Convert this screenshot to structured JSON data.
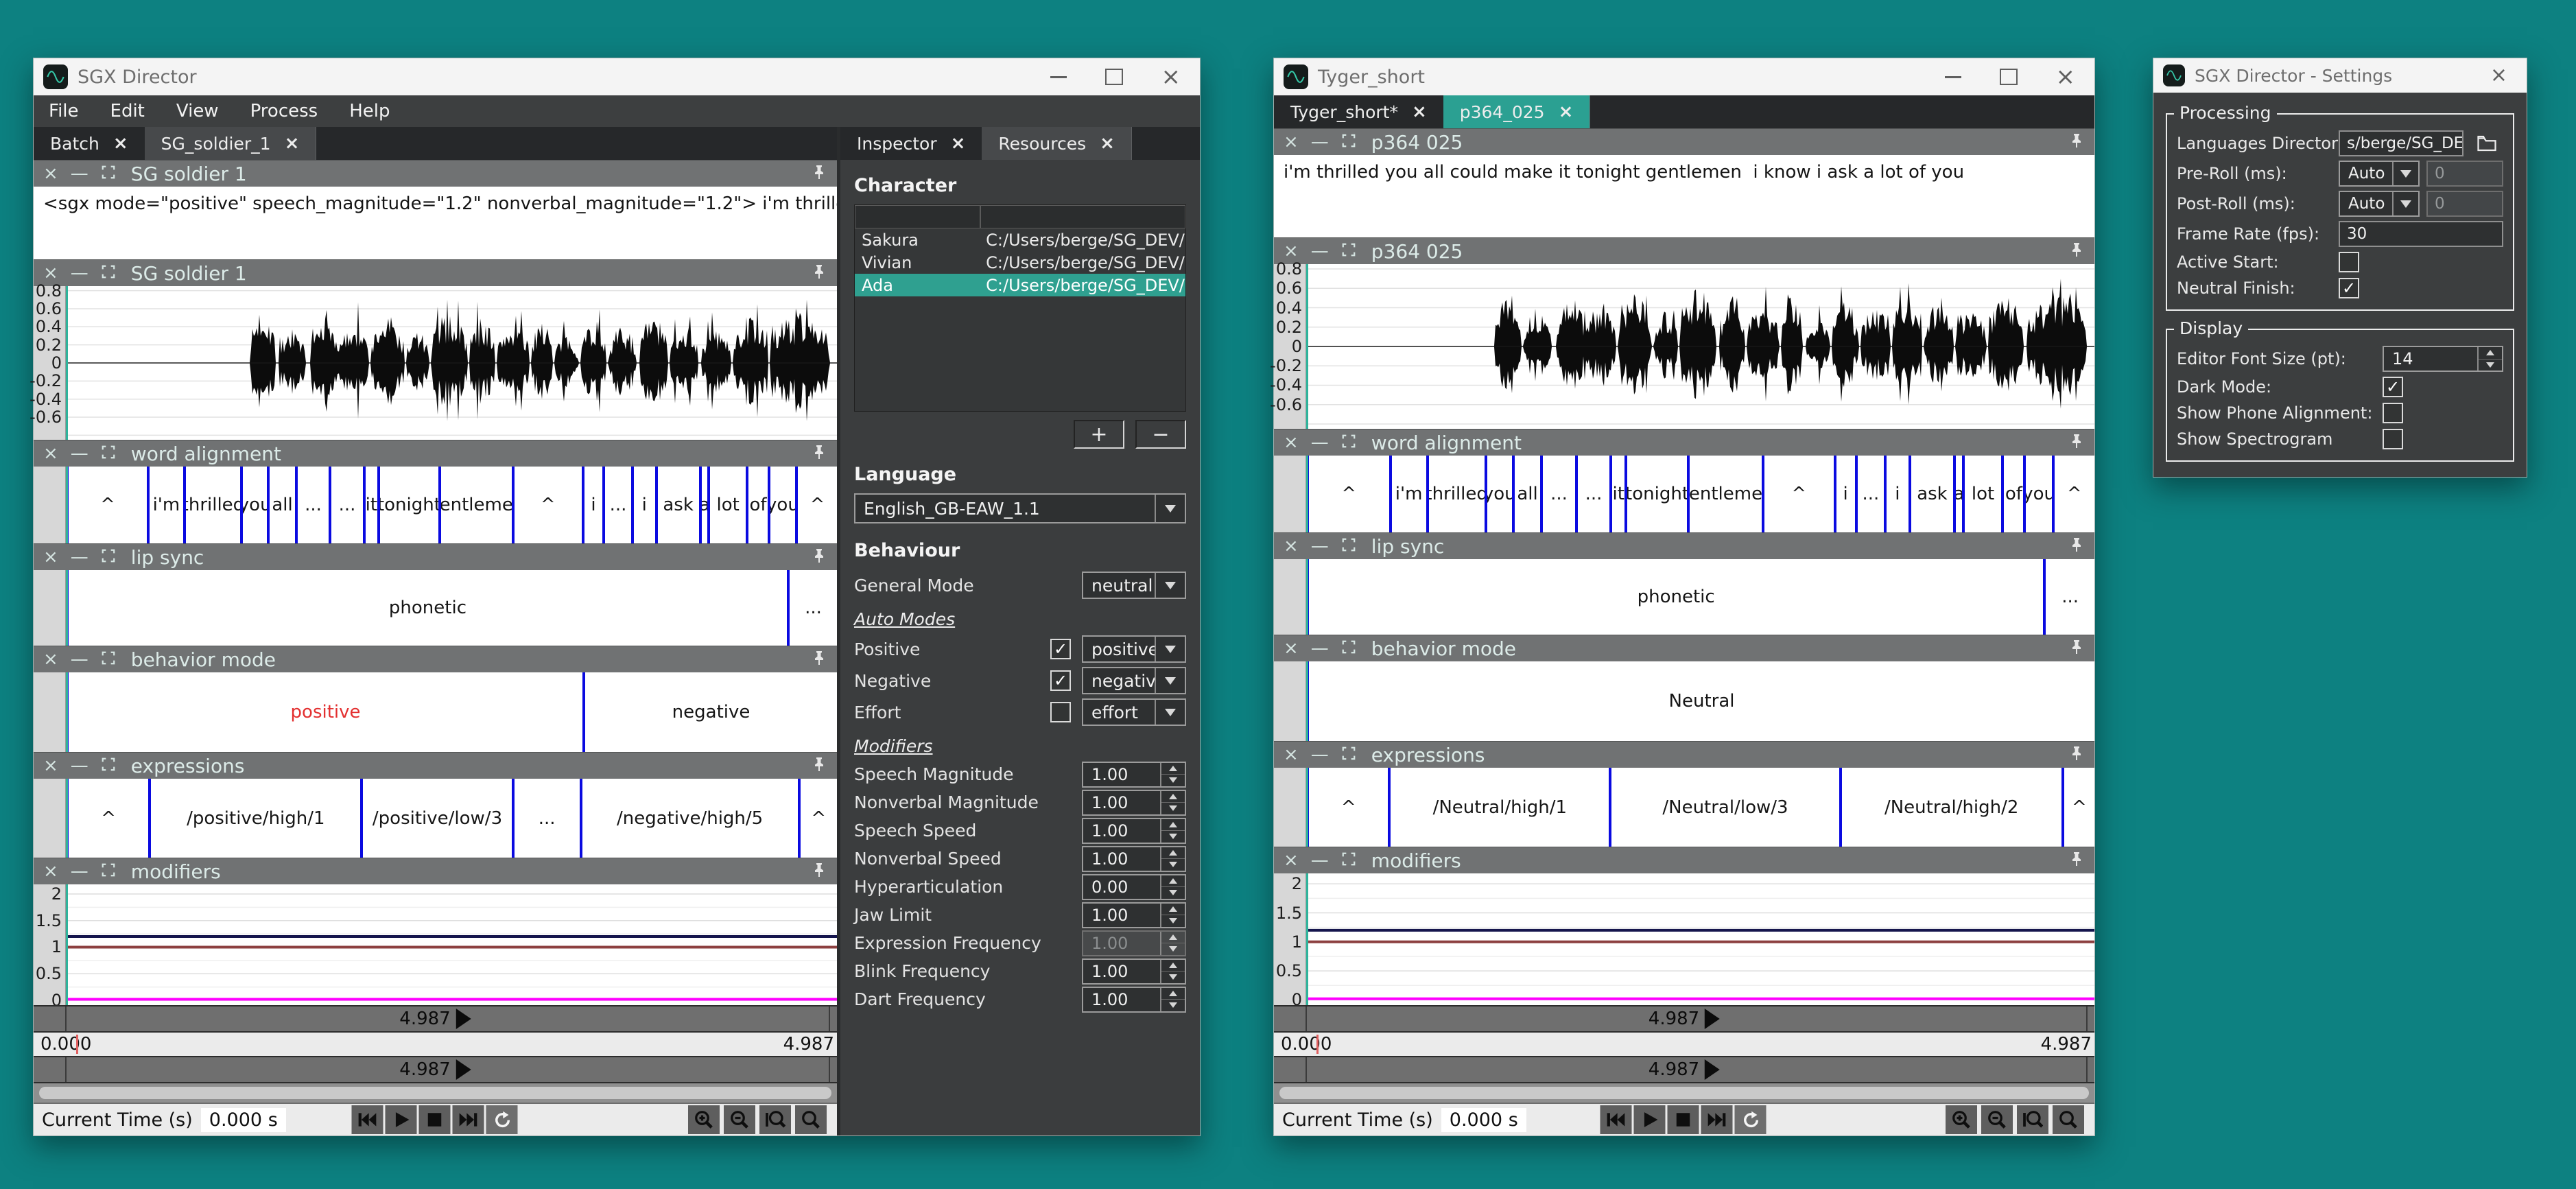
{
  "desktop": {
    "bg": "#0d8181",
    "accent_teal": "#2ba092",
    "boundary_blue": "#0a0ae0"
  },
  "wave": {
    "y_ticks": [
      {
        "label": "0.8",
        "v": 0.8
      },
      {
        "label": "0.6",
        "v": 0.6
      },
      {
        "label": "0.4",
        "v": 0.4
      },
      {
        "label": "0.2",
        "v": 0.2
      },
      {
        "label": "0",
        "v": 0.0
      },
      {
        "label": "-0.2",
        "v": -0.2
      },
      {
        "label": "-0.4",
        "v": -0.4
      },
      {
        "label": "-0.6",
        "v": -0.6
      }
    ],
    "bursts": [
      [
        0.24,
        0.272,
        0.62
      ],
      [
        0.276,
        0.31,
        0.36
      ],
      [
        0.318,
        0.356,
        0.46
      ],
      [
        0.356,
        0.392,
        0.42
      ],
      [
        0.396,
        0.438,
        0.5
      ],
      [
        0.442,
        0.47,
        0.34
      ],
      [
        0.474,
        0.52,
        0.55
      ],
      [
        0.524,
        0.556,
        0.48
      ],
      [
        0.56,
        0.6,
        0.42
      ],
      [
        0.604,
        0.63,
        0.5
      ],
      [
        0.634,
        0.664,
        0.3
      ],
      [
        0.668,
        0.7,
        0.46
      ],
      [
        0.704,
        0.74,
        0.38
      ],
      [
        0.744,
        0.78,
        0.5
      ],
      [
        0.784,
        0.82,
        0.44
      ],
      [
        0.824,
        0.862,
        0.36
      ],
      [
        0.866,
        0.91,
        0.5
      ],
      [
        0.914,
        0.99,
        0.56
      ]
    ]
  },
  "mods_graph": {
    "y_ticks": [
      {
        "label": "2",
        "v": 2.0
      },
      {
        "label": "1.5",
        "v": 1.5
      },
      {
        "label": "1",
        "v": 1.0
      },
      {
        "label": "0.5",
        "v": 0.5
      },
      {
        "label": "0",
        "v": 0.0
      }
    ],
    "lines": [
      {
        "v": 1.2,
        "color": "#15154d"
      },
      {
        "v": 1.0,
        "color": "#8d4040"
      },
      {
        "v": 0.02,
        "color": "#ff00ff"
      }
    ]
  },
  "windows": [
    {
      "title": "SGX Director",
      "has_menu": true,
      "has_inspector": true,
      "teal_active": false,
      "menu": [
        "File",
        "Edit",
        "View",
        "Process",
        "Help"
      ],
      "tabs": [
        {
          "label": "Batch",
          "active": false
        },
        {
          "label": "SG_soldier_1",
          "active": true
        }
      ],
      "text_panel": {
        "title": "SG soldier 1",
        "content": "<sgx mode=\"positive\" speech_magnitude=\"1.2\" nonverbal_magnitude=\"1.2\"> i'm thrilled you all could make it tonig"
      },
      "wave_panel": {
        "title": "SG soldier 1",
        "seed": 7
      },
      "word_panel": {
        "title": "word alignment",
        "tokens": [
          {
            "t": "^",
            "w": 10.5
          },
          {
            "t": "i'm",
            "w": 4.7
          },
          {
            "t": "thrilled",
            "w": 7.4
          },
          {
            "t": "you",
            "w": 3.5
          },
          {
            "t": "all",
            "w": 3.6
          },
          {
            "t": "...",
            "w": 4.4
          },
          {
            "t": "...",
            "w": 4.4
          },
          {
            "t": "it",
            "w": 1.9
          },
          {
            "t": "tonight",
            "w": 7.9
          },
          {
            "t": "gentlemen",
            "w": 9.5
          },
          {
            "t": "^",
            "w": 9.1
          },
          {
            "t": "i",
            "w": 2.7
          },
          {
            "t": "...",
            "w": 3.7
          },
          {
            "t": "i",
            "w": 3.1
          },
          {
            "t": "ask",
            "w": 5.7
          },
          {
            "t": "a",
            "w": 1.1
          },
          {
            "t": "lot",
            "w": 5.0
          },
          {
            "t": "of",
            "w": 2.8
          },
          {
            "t": "you",
            "w": 3.6
          },
          {
            "t": "^",
            "w": 5.4
          }
        ]
      },
      "lip_panel": {
        "title": "lip sync",
        "segments": [
          {
            "t": "phonetic",
            "w": 93.5
          },
          {
            "t": "...",
            "w": 6.5
          }
        ]
      },
      "behavior_panel": {
        "title": "behavior mode",
        "segments": [
          {
            "t": "positive",
            "w": 67,
            "color": "#e33030"
          },
          {
            "t": "negative",
            "w": 33
          }
        ]
      },
      "expr_panel": {
        "title": "expressions",
        "segments": [
          {
            "t": "^",
            "w": 10.7
          },
          {
            "t": "/positive/high/1",
            "w": 27.5
          },
          {
            "t": "/positive/low/3",
            "w": 19.6
          },
          {
            "t": "...",
            "w": 8.8
          },
          {
            "t": "/negative/high/5",
            "w": 28.3
          },
          {
            "t": "^",
            "w": 5.1
          }
        ]
      },
      "mods_panel": {
        "title": "modifiers"
      },
      "timeline": {
        "duration": "4.987",
        "start": "0.000",
        "end": "4.987"
      },
      "transport": {
        "label": "Current Time (s)",
        "value": "0.000",
        "unit": "s"
      }
    },
    {
      "title": "Tyger_short",
      "has_menu": false,
      "has_inspector": false,
      "teal_active": true,
      "menu": [],
      "tabs": [
        {
          "label": "Tyger_short*",
          "active": false
        },
        {
          "label": "p364_025",
          "active": true
        }
      ],
      "text_panel": {
        "title": "p364 025",
        "content": "i'm thrilled you all could make it tonight gentlemen  i know i ask a lot of you"
      },
      "wave_panel": {
        "title": "p364 025",
        "seed": 13
      },
      "word_panel": {
        "title": "word alignment",
        "tokens": [
          {
            "t": "^",
            "w": 10.5
          },
          {
            "t": "i'm",
            "w": 4.7
          },
          {
            "t": "thrilled",
            "w": 7.4
          },
          {
            "t": "you",
            "w": 3.5
          },
          {
            "t": "all",
            "w": 3.6
          },
          {
            "t": "...",
            "w": 4.4
          },
          {
            "t": "...",
            "w": 4.4
          },
          {
            "t": "it",
            "w": 1.9
          },
          {
            "t": "tonight",
            "w": 7.9
          },
          {
            "t": "gentlemen",
            "w": 9.5
          },
          {
            "t": "^",
            "w": 9.1
          },
          {
            "t": "i",
            "w": 2.7
          },
          {
            "t": "...",
            "w": 3.7
          },
          {
            "t": "i",
            "w": 3.1
          },
          {
            "t": "ask",
            "w": 5.7
          },
          {
            "t": "a",
            "w": 1.1
          },
          {
            "t": "lot",
            "w": 5.0
          },
          {
            "t": "of",
            "w": 2.8
          },
          {
            "t": "you",
            "w": 3.6
          },
          {
            "t": "^",
            "w": 5.4
          }
        ]
      },
      "lip_panel": {
        "title": "lip sync",
        "segments": [
          {
            "t": "phonetic",
            "w": 93.5
          },
          {
            "t": "...",
            "w": 6.5
          }
        ]
      },
      "behavior_panel": {
        "title": "behavior mode",
        "segments": [
          {
            "t": "Neutral",
            "w": 100
          }
        ]
      },
      "expr_panel": {
        "title": "expressions",
        "segments": [
          {
            "t": "^",
            "w": 10.4
          },
          {
            "t": "/Neutral/high/1",
            "w": 28.0
          },
          {
            "t": "/Neutral/low/3",
            "w": 29.2
          },
          {
            "t": "/Neutral/high/2",
            "w": 28.2
          },
          {
            "t": "^",
            "w": 4.2
          }
        ]
      },
      "mods_panel": {
        "title": "modifiers"
      },
      "timeline": {
        "duration": "4.987",
        "start": "0.000",
        "end": "4.987"
      },
      "transport": {
        "label": "Current Time (s)",
        "value": "0.000",
        "unit": "s"
      }
    }
  ],
  "inspector": {
    "tabs": [
      {
        "label": "Inspector",
        "active": false
      },
      {
        "label": "Resources",
        "active": true
      }
    ],
    "character": {
      "label": "Character",
      "headers": [
        "",
        ""
      ],
      "rows": [
        {
          "name": "Sakura",
          "path": "C:/Users/berge/SG_DEV/SG_Characte...",
          "selected": false
        },
        {
          "name": "Vivian",
          "path": "C:/Users/berge/SG_DEV/SG_Characte...",
          "selected": false
        },
        {
          "name": "Ada",
          "path": "C:/Users/berge/SG_DEV/SG_Characte...",
          "selected": true
        }
      ],
      "add_label": "+",
      "remove_label": "−"
    },
    "language": {
      "label": "Language",
      "value": "English_GB-EAW_1.1"
    },
    "behaviour": {
      "label": "Behaviour",
      "general_mode": {
        "label": "General Mode",
        "value": "neutral"
      },
      "auto_modes_label": "Auto Modes",
      "rows": [
        {
          "label": "Positive",
          "checked": true,
          "value": "positive"
        },
        {
          "label": "Negative",
          "checked": true,
          "value": "negative"
        },
        {
          "label": "Effort",
          "checked": false,
          "value": "effort"
        }
      ]
    },
    "modifiers": {
      "label": "Modifiers",
      "rows": [
        {
          "label": "Speech Magnitude",
          "value": "1.00"
        },
        {
          "label": "Nonverbal Magnitude",
          "value": "1.00"
        },
        {
          "label": "Speech Speed",
          "value": "1.00"
        },
        {
          "label": "Nonverbal Speed",
          "value": "1.00"
        },
        {
          "label": "Hyperarticulation",
          "value": "0.00"
        },
        {
          "label": "Jaw Limit",
          "value": "1.00"
        },
        {
          "label": "Expression Frequency",
          "value": "1.00",
          "disabled": true
        },
        {
          "label": "Blink Frequency",
          "value": "1.00"
        },
        {
          "label": "Dart Frequency",
          "value": "1.00"
        }
      ]
    }
  },
  "settings": {
    "title": "SGX Director - Settings",
    "processing": {
      "label": "Processing",
      "languages_directory": {
        "label": "Languages Directory:",
        "value": "s/berge/SG_DEV/languages"
      },
      "pre_roll": {
        "label": "Pre-Roll (ms):",
        "dropdown": "Auto",
        "value": "0"
      },
      "post_roll": {
        "label": "Post-Roll (ms):",
        "dropdown": "Auto",
        "value": "0"
      },
      "frame_rate": {
        "label": "Frame Rate (fps):",
        "value": "30"
      },
      "active_start": {
        "label": "Active Start:",
        "checked": false
      },
      "neutral_finish": {
        "label": "Neutral Finish:",
        "checked": true
      }
    },
    "display": {
      "label": "Display",
      "editor_font_size": {
        "label": "Editor Font Size (pt):",
        "value": "14"
      },
      "dark_mode": {
        "label": "Dark Mode:",
        "checked": true
      },
      "show_phone_alignment": {
        "label": "Show Phone Alignment:",
        "checked": false
      },
      "show_spectrogram": {
        "label": "Show Spectrogram",
        "checked": false
      }
    }
  }
}
